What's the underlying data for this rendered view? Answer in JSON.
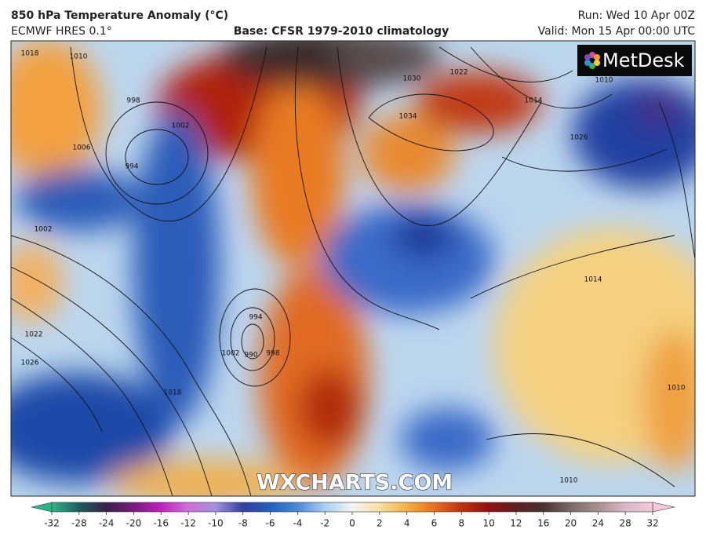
{
  "header": {
    "title": "850 hPa Temperature Anomaly (°C)",
    "model": "ECMWF HRES 0.1°",
    "base": "Base: CFSR 1979-2010 climatology",
    "run": "Run: Wed 10 Apr 00Z",
    "valid": "Valid: Mon 15 Apr 00:00 UTC"
  },
  "logo": "MetDesk",
  "watermark": "WXCHARTS.COM",
  "isobar_labels": [
    1018,
    1010,
    998,
    994,
    1002,
    1006,
    1002,
    1022,
    1026,
    1018,
    994,
    990,
    998,
    1002,
    1030,
    1034,
    1022,
    1014,
    1026,
    1014,
    1010,
    1010,
    1010
  ],
  "colorbar": {
    "ticks": [
      -32,
      -28,
      -24,
      -20,
      -16,
      -12,
      -10,
      -8,
      -6,
      -4,
      -2,
      0,
      2,
      4,
      6,
      8,
      10,
      12,
      16,
      20,
      24,
      28,
      32
    ],
    "colors": [
      "#2fb38a",
      "#1a5e5e",
      "#3b1e4a",
      "#7a1a80",
      "#c020c0",
      "#d070d8",
      "#a090e0",
      "#3040a0",
      "#2060c0",
      "#4a8ad8",
      "#a8d0f0",
      "#f4f4f4",
      "#f8e0a0",
      "#f5b040",
      "#e87020",
      "#c03010",
      "#901010",
      "#602020",
      "#4a3030",
      "#7a6a6a",
      "#a89090",
      "#d8b8c8",
      "#f4c8d8"
    ]
  }
}
